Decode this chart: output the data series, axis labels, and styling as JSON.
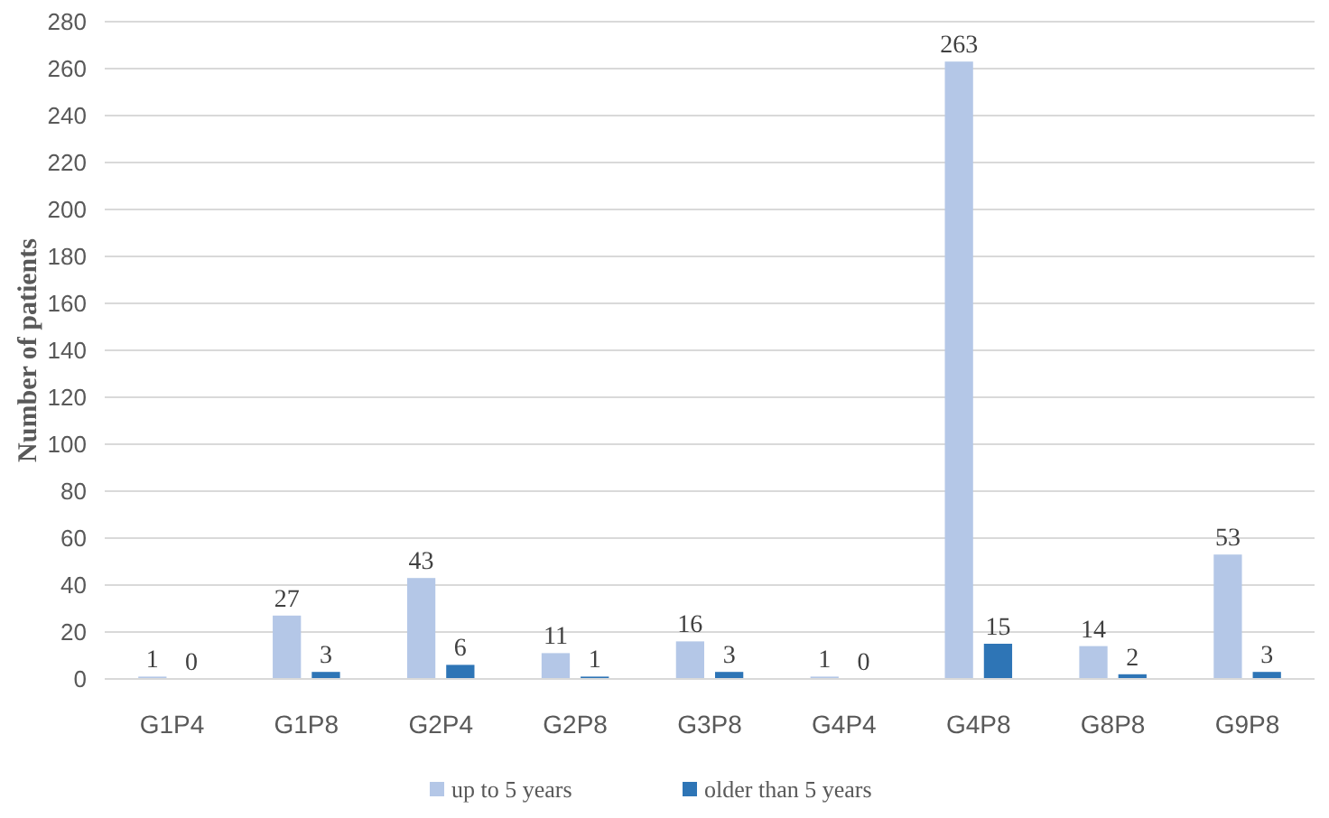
{
  "chart_data": {
    "type": "bar",
    "ylabel": "Number of patients",
    "categories": [
      "G1P4",
      "G1P8",
      "G2P4",
      "G2P8",
      "G3P8",
      "G4P4",
      "G4P8",
      "G8P8",
      "G9P8"
    ],
    "series": [
      {
        "name": "up to 5 years",
        "color": "#b4c7e7",
        "values": [
          1,
          27,
          43,
          11,
          16,
          1,
          263,
          14,
          53
        ]
      },
      {
        "name": "older than 5 years",
        "color": "#2e75b6",
        "values": [
          0,
          3,
          6,
          1,
          3,
          0,
          15,
          2,
          3
        ]
      }
    ],
    "ylim": [
      0,
      280
    ],
    "yticks": [
      0,
      20,
      40,
      60,
      80,
      100,
      120,
      140,
      160,
      180,
      200,
      220,
      240,
      260,
      280
    ],
    "grid": "y",
    "legend": "bottom",
    "data_labels": true
  }
}
